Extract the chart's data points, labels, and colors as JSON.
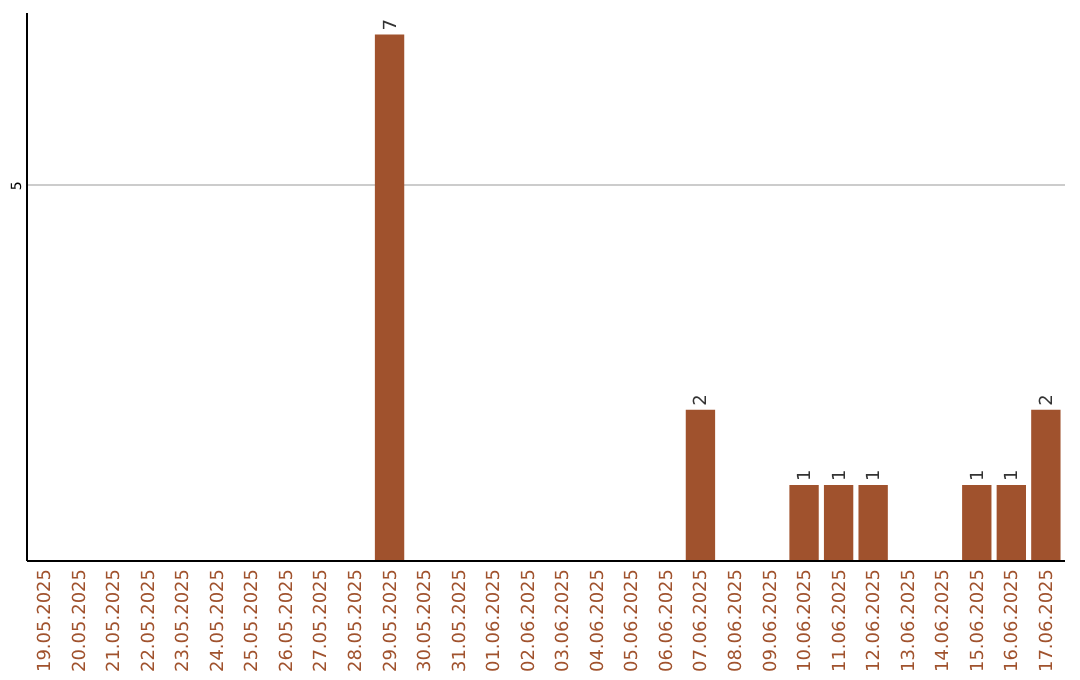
{
  "chart_data": {
    "type": "bar",
    "categories": [
      "19.05.2025",
      "20.05.2025",
      "21.05.2025",
      "22.05.2025",
      "23.05.2025",
      "24.05.2025",
      "25.05.2025",
      "26.05.2025",
      "27.05.2025",
      "28.05.2025",
      "29.05.2025",
      "30.05.2025",
      "31.05.2025",
      "01.06.2025",
      "02.06.2025",
      "03.06.2025",
      "04.06.2025",
      "05.06.2025",
      "06.06.2025",
      "07.06.2025",
      "08.06.2025",
      "09.06.2025",
      "10.06.2025",
      "11.06.2025",
      "12.06.2025",
      "13.06.2025",
      "14.06.2025",
      "15.06.2025",
      "16.06.2025",
      "17.06.2025"
    ],
    "values": [
      0,
      0,
      0,
      0,
      0,
      0,
      0,
      0,
      0,
      0,
      7,
      0,
      0,
      0,
      0,
      0,
      0,
      0,
      0,
      2,
      0,
      0,
      1,
      1,
      1,
      0,
      0,
      1,
      1,
      2
    ],
    "value_labels": [
      null,
      null,
      null,
      null,
      null,
      null,
      null,
      null,
      null,
      null,
      "7",
      null,
      null,
      null,
      null,
      null,
      null,
      null,
      null,
      "2",
      null,
      null,
      "1",
      "1",
      "1",
      null,
      null,
      "1",
      "1",
      "2"
    ],
    "color": "#a0522d",
    "ylim": [
      0,
      7.3
    ],
    "yticks": [
      5
    ],
    "grid": "y"
  }
}
